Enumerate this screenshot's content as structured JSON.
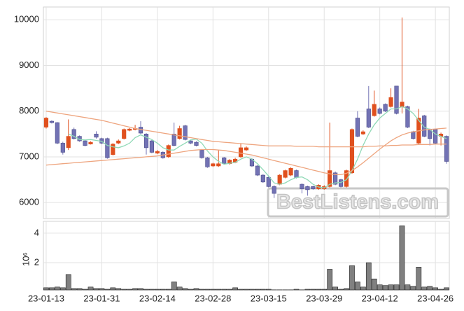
{
  "chart_data": [
    {
      "type": "candlestick",
      "ylim": [
        5650,
        10280
      ],
      "yticks": [
        6000,
        7000,
        8000,
        9000,
        10000
      ],
      "grid": true,
      "up_color": "#e0501e",
      "down_color": "#7272b4",
      "open": [
        7650,
        7780,
        7750,
        7300,
        7200,
        7600,
        7450,
        7350,
        7280,
        7500,
        7400,
        7400,
        7050,
        7300,
        7400,
        7580,
        7600,
        7650,
        7500,
        7350,
        7080,
        7100,
        7000,
        7500,
        7400,
        7680,
        7350,
        7320,
        7150,
        6980,
        6800,
        6800,
        6980,
        6850,
        6880,
        7000,
        7150,
        6950,
        6800,
        6600,
        6550,
        6350,
        6400,
        6550,
        6600,
        6700,
        6400,
        6350,
        6350,
        6300,
        6300,
        6350,
        6650,
        6500,
        6350,
        6650,
        7850,
        7500,
        8050,
        7900,
        8050,
        8150,
        8100,
        8550,
        8100,
        8100,
        7550,
        7300,
        7900,
        7600,
        7600,
        7450,
        7450
      ],
      "high": [
        7870,
        7800,
        7760,
        7330,
        7820,
        7640,
        7470,
        7370,
        7340,
        7560,
        7420,
        7420,
        7300,
        7380,
        7620,
        7630,
        7700,
        7780,
        7520,
        7370,
        7150,
        7120,
        7270,
        7750,
        7680,
        7700,
        7380,
        7340,
        7170,
        7000,
        6870,
        7150,
        7000,
        6950,
        6980,
        7300,
        7230,
        6970,
        6820,
        6620,
        6570,
        6380,
        6620,
        6720,
        6770,
        6720,
        6420,
        6370,
        6370,
        6400,
        6380,
        7750,
        6680,
        6520,
        6720,
        7620,
        8000,
        7580,
        8550,
        8450,
        8080,
        8170,
        8500,
        8550,
        10050,
        8120,
        7570,
        8050,
        7920,
        7620,
        7620,
        7530,
        7470
      ],
      "low": [
        7620,
        7730,
        7280,
        7050,
        7150,
        7380,
        7330,
        7230,
        7270,
        7400,
        7280,
        6960,
        7030,
        7280,
        7380,
        7560,
        7580,
        7500,
        7050,
        7080,
        7060,
        6960,
        6980,
        7230,
        7380,
        7360,
        7280,
        7230,
        6960,
        6760,
        6780,
        6780,
        6830,
        6830,
        6860,
        6980,
        7130,
        6780,
        6580,
        6430,
        6330,
        6100,
        6380,
        6530,
        6580,
        6530,
        6200,
        6150,
        6280,
        6280,
        6280,
        6330,
        6380,
        6330,
        6330,
        6630,
        7430,
        7480,
        7630,
        7880,
        7930,
        7980,
        8080,
        7930,
        7950,
        7630,
        7380,
        7280,
        7430,
        7250,
        7280,
        7250,
        6850
      ],
      "close": [
        7850,
        7750,
        7300,
        7100,
        7450,
        7400,
        7350,
        7250,
        7320,
        7430,
        7300,
        6980,
        7280,
        7350,
        7600,
        7610,
        7620,
        7520,
        7200,
        7100,
        7120,
        6980,
        7250,
        7250,
        7620,
        7380,
        7300,
        7250,
        6980,
        6780,
        6850,
        6850,
        6850,
        6930,
        6950,
        7200,
        7200,
        6800,
        6600,
        6450,
        6350,
        6200,
        6600,
        6700,
        6750,
        6550,
        6300,
        6280,
        6300,
        6380,
        6350,
        6700,
        6400,
        6350,
        6700,
        7600,
        7450,
        7550,
        7650,
        8150,
        7950,
        8000,
        8300,
        7950,
        8200,
        7650,
        7400,
        7850,
        7450,
        7400,
        7300,
        7500,
        6900
      ],
      "series": [
        {
          "color": "#8fd9b6",
          "values": [
            null,
            null,
            null,
            null,
            7500,
            7450,
            7380,
            7370,
            7380,
            7360,
            7340,
            7250,
            7220,
            7200,
            7240,
            7300,
            7420,
            7480,
            7430,
            7380,
            7300,
            7200,
            7150,
            7150,
            7230,
            7300,
            7370,
            7390,
            7300,
            7130,
            7000,
            6900,
            6840,
            6860,
            6880,
            6950,
            7000,
            6950,
            6850,
            6720,
            6580,
            6430,
            6400,
            6430,
            6500,
            6550,
            6560,
            6500,
            6400,
            6340,
            6320,
            6400,
            6430,
            6440,
            6500,
            6700,
            6950,
            7250,
            7500,
            7700,
            7850,
            7950,
            8050,
            8050,
            8100,
            8050,
            7950,
            7800,
            7650,
            7600,
            7500,
            7450,
            7400
          ]
        },
        {
          "color": "#eea57f",
          "values": [
            8000,
            7980,
            7960,
            7940,
            7920,
            7900,
            7880,
            7860,
            7840,
            7820,
            7800,
            7770,
            7740,
            7710,
            7680,
            7650,
            7620,
            7600,
            7580,
            7560,
            7540,
            7520,
            7500,
            7480,
            7460,
            7440,
            7420,
            7400,
            7380,
            7360,
            7340,
            7330,
            7320,
            7310,
            7300,
            7290,
            7280,
            7270,
            7260,
            7250,
            7240,
            7240,
            7240,
            7240,
            7240,
            7230,
            7230,
            7230,
            7230,
            7220,
            7220,
            7220,
            7220,
            7220,
            7220,
            7220,
            7220,
            7220,
            7230,
            7230,
            7240,
            7240,
            7250,
            7250,
            7260,
            7260,
            7260,
            7270,
            7270,
            7270,
            7280,
            7280,
            7280
          ]
        },
        {
          "color": "#eea57f",
          "values": [
            6820,
            6830,
            6840,
            6850,
            6860,
            6870,
            6880,
            6890,
            6900,
            6910,
            6920,
            6930,
            6940,
            6950,
            6960,
            6970,
            6980,
            6990,
            7000,
            7010,
            7020,
            7040,
            7060,
            7080,
            7100,
            7120,
            7140,
            7150,
            7160,
            7160,
            7160,
            7150,
            7140,
            7120,
            7100,
            7080,
            7060,
            7040,
            7010,
            6980,
            6950,
            6920,
            6890,
            6860,
            6830,
            6800,
            6770,
            6740,
            6710,
            6680,
            6650,
            6630,
            6610,
            6610,
            6640,
            6700,
            6780,
            6870,
            6970,
            7070,
            7170,
            7260,
            7350,
            7420,
            7480,
            7520,
            7550,
            7570,
            7590,
            7600,
            7610,
            7620,
            7630
          ]
        }
      ],
      "watermark": "BestListens.com"
    },
    {
      "type": "bar",
      "ylabel": "10⁶",
      "color": "#808080",
      "ylim": [
        0.15,
        4.8
      ],
      "yticks": [
        2,
        4
      ],
      "grid": true,
      "categories": [
        "23-01-13",
        null,
        null,
        null,
        null,
        null,
        null,
        null,
        null,
        null,
        "23-01-31",
        null,
        null,
        null,
        null,
        null,
        null,
        null,
        null,
        null,
        "23-02-14",
        null,
        null,
        null,
        null,
        null,
        null,
        null,
        null,
        null,
        "23-02-28",
        null,
        null,
        null,
        null,
        null,
        null,
        null,
        null,
        null,
        "23-03-15",
        null,
        null,
        null,
        null,
        null,
        null,
        null,
        null,
        null,
        "23-03-29",
        null,
        null,
        null,
        null,
        null,
        null,
        null,
        null,
        null,
        "23-04-12",
        null,
        null,
        null,
        null,
        null,
        null,
        null,
        null,
        null,
        "23-04-26",
        null,
        null
      ],
      "values": [
        0.3,
        0.3,
        0.35,
        0.3,
        1.2,
        0.25,
        0.25,
        0.2,
        0.35,
        0.25,
        0.25,
        0.2,
        0.3,
        0.25,
        0.2,
        0.2,
        0.25,
        0.25,
        0.2,
        0.2,
        0.2,
        0.2,
        0.2,
        0.7,
        0.35,
        0.25,
        0.2,
        0.25,
        0.2,
        0.2,
        0.2,
        0.2,
        0.2,
        0.2,
        0.3,
        0.2,
        0.2,
        0.2,
        0.2,
        0.2,
        0.2,
        0.16,
        0.16,
        0.16,
        0.16,
        0.2,
        0.16,
        0.2,
        0.2,
        0.2,
        0.2,
        1.55,
        0.35,
        0.2,
        0.25,
        1.8,
        0.7,
        0.35,
        2.0,
        0.9,
        0.5,
        0.45,
        0.5,
        0.5,
        4.5,
        0.5,
        0.4,
        1.7,
        0.35,
        0.4,
        0.3,
        0.2,
        0.3
      ]
    }
  ]
}
